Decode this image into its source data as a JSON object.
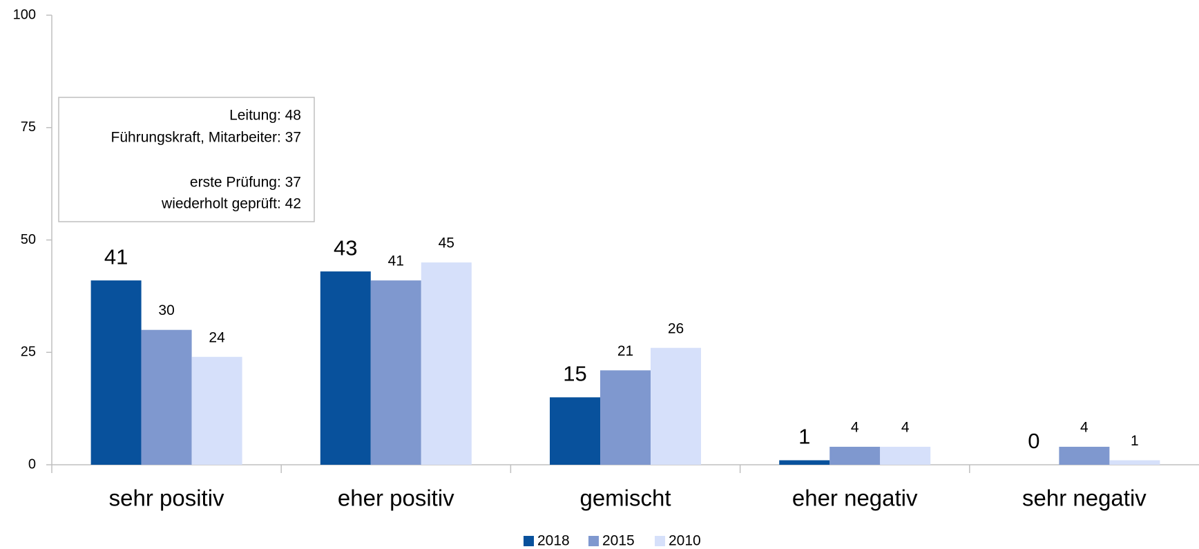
{
  "chart_data": {
    "type": "bar",
    "categories": [
      "sehr positiv",
      "eher positiv",
      "gemischt",
      "eher negativ",
      "sehr negativ"
    ],
    "series": [
      {
        "name": "2018",
        "color": "#08519c",
        "values": [
          41,
          43,
          15,
          1,
          0
        ]
      },
      {
        "name": "2015",
        "color": "#7f98cf",
        "values": [
          30,
          41,
          21,
          4,
          4
        ]
      },
      {
        "name": "2010",
        "color": "#d6e0fa",
        "values": [
          24,
          45,
          26,
          4,
          1
        ]
      }
    ],
    "ylim": [
      0,
      100
    ],
    "yticks": [
      0,
      25,
      50,
      75,
      100
    ],
    "annotation": [
      "Leitung: 48",
      "Führungskraft, Mitarbeiter: 37",
      "erste Prüfung: 37",
      "wiederholt geprüft: 42"
    ],
    "legend": "bottom"
  }
}
